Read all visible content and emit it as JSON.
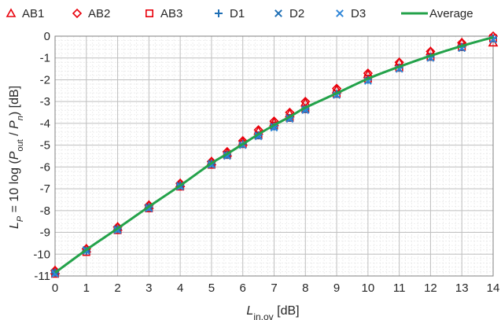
{
  "chart_data": {
    "type": "scatter",
    "xlabel": {
      "main": "L",
      "sub": "in,ov",
      "unit": " [dB]"
    },
    "ylabel": {
      "main": "L",
      "sub": "P",
      "pre": " = 10 log (",
      "p1": "P",
      "p1sub": "out",
      "mid": " / ",
      "p2": "P",
      "p2sub": "n",
      "post": ")   [dB]"
    },
    "xlim": [
      0,
      14
    ],
    "ylim": [
      -11,
      0
    ],
    "x_ticks": [
      0,
      1,
      2,
      3,
      4,
      5,
      6,
      7,
      8,
      9,
      10,
      11,
      12,
      13,
      14
    ],
    "y_ticks": [
      0,
      -1,
      -2,
      -3,
      -4,
      -5,
      -6,
      -7,
      -8,
      -9,
      -10,
      -11
    ],
    "grid": true,
    "legend_position": "top",
    "x": [
      0,
      1,
      2,
      3,
      4,
      5,
      5.5,
      6,
      6.5,
      7,
      7.5,
      8,
      9,
      10,
      11,
      12,
      13,
      14
    ],
    "series": [
      {
        "name": "AB1",
        "marker": "triangle",
        "color": "#e8000b",
        "values": [
          -10.75,
          -9.75,
          -8.75,
          -7.75,
          -6.75,
          -5.75,
          -5.35,
          -4.85,
          -4.35,
          -3.95,
          -3.55,
          -3.05,
          -2.45,
          -1.75,
          -1.2,
          -0.7,
          -0.3,
          -0.3
        ]
      },
      {
        "name": "AB2",
        "marker": "diamond",
        "color": "#e8000b",
        "values": [
          -10.75,
          -9.75,
          -8.75,
          -7.75,
          -6.75,
          -5.75,
          -5.3,
          -4.8,
          -4.3,
          -3.9,
          -3.5,
          -3.0,
          -2.4,
          -1.7,
          -1.2,
          -0.7,
          -0.3,
          0.0
        ]
      },
      {
        "name": "AB3",
        "marker": "square",
        "color": "#e8000b",
        "values": [
          -10.9,
          -9.9,
          -8.9,
          -7.9,
          -6.9,
          -5.9,
          -5.45,
          -4.95,
          -4.55,
          -4.1,
          -3.75,
          -3.35,
          -2.65,
          -1.95,
          -1.45,
          -0.95,
          -0.5,
          -0.1
        ]
      },
      {
        "name": "D1",
        "marker": "plus",
        "color": "#1f6fb5",
        "values": [
          -10.85,
          -9.85,
          -8.85,
          -7.85,
          -6.85,
          -5.85,
          -5.45,
          -4.95,
          -4.55,
          -4.15,
          -3.75,
          -3.35,
          -2.65,
          -2.0,
          -1.45,
          -0.95,
          -0.5,
          -0.1
        ]
      },
      {
        "name": "D2",
        "marker": "x",
        "color": "#1f6fb5",
        "values": [
          -10.85,
          -9.8,
          -8.85,
          -7.85,
          -6.85,
          -5.85,
          -5.45,
          -5.0,
          -4.55,
          -4.15,
          -3.75,
          -3.35,
          -2.7,
          -2.05,
          -1.5,
          -1.0,
          -0.55,
          -0.15
        ]
      },
      {
        "name": "D3",
        "marker": "x",
        "color": "#2f86d8",
        "values": [
          -10.9,
          -9.85,
          -8.9,
          -7.9,
          -6.9,
          -5.9,
          -5.5,
          -5.0,
          -4.6,
          -4.2,
          -3.8,
          -3.4,
          -2.7,
          -2.05,
          -1.5,
          -1.0,
          -0.55,
          -0.15
        ]
      },
      {
        "name": "Average",
        "marker": "line",
        "color": "#23a24a",
        "values": [
          -10.85,
          -9.8,
          -8.82,
          -7.82,
          -6.85,
          -5.83,
          -5.4,
          -4.95,
          -4.5,
          -4.08,
          -3.7,
          -3.28,
          -2.62,
          -1.95,
          -1.4,
          -0.9,
          -0.45,
          -0.05
        ]
      }
    ]
  }
}
